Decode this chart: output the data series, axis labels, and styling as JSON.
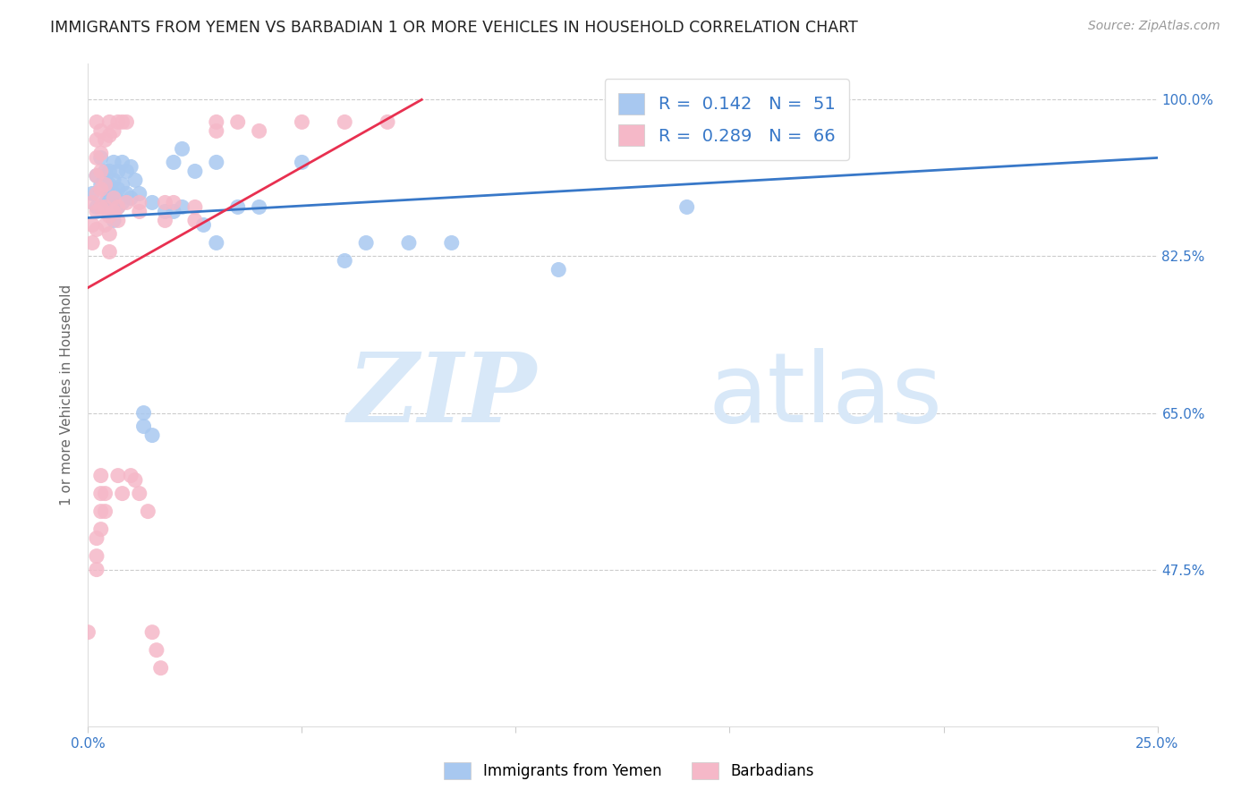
{
  "title": "IMMIGRANTS FROM YEMEN VS BARBADIAN 1 OR MORE VEHICLES IN HOUSEHOLD CORRELATION CHART",
  "source": "Source: ZipAtlas.com",
  "ylabel": "1 or more Vehicles in Household",
  "xlim": [
    0.0,
    0.25
  ],
  "ylim": [
    0.3,
    1.04
  ],
  "yticks": [
    0.475,
    0.65,
    0.825,
    1.0
  ],
  "ytick_labels": [
    "47.5%",
    "65.0%",
    "82.5%",
    "100.0%"
  ],
  "xtick_vals": [
    0.0,
    0.05,
    0.1,
    0.15,
    0.2,
    0.25
  ],
  "xtick_labels": [
    "0.0%",
    "",
    "",
    "",
    "",
    "25.0%"
  ],
  "legend_label1": "Immigrants from Yemen",
  "legend_label2": "Barbadians",
  "blue_color": "#a8c8f0",
  "pink_color": "#f5b8c8",
  "trend_blue": "#3878c8",
  "trend_pink": "#e83050",
  "watermark_zip": "ZIP",
  "watermark_atlas": "atlas",
  "watermark_color": "#d8e8f8",
  "blue_scatter": [
    [
      0.001,
      0.895
    ],
    [
      0.002,
      0.88
    ],
    [
      0.002,
      0.915
    ],
    [
      0.003,
      0.935
    ],
    [
      0.003,
      0.905
    ],
    [
      0.004,
      0.92
    ],
    [
      0.004,
      0.9
    ],
    [
      0.004,
      0.885
    ],
    [
      0.005,
      0.92
    ],
    [
      0.005,
      0.905
    ],
    [
      0.005,
      0.89
    ],
    [
      0.005,
      0.875
    ],
    [
      0.006,
      0.93
    ],
    [
      0.006,
      0.91
    ],
    [
      0.006,
      0.895
    ],
    [
      0.006,
      0.88
    ],
    [
      0.006,
      0.865
    ],
    [
      0.007,
      0.92
    ],
    [
      0.007,
      0.9
    ],
    [
      0.007,
      0.88
    ],
    [
      0.008,
      0.93
    ],
    [
      0.008,
      0.905
    ],
    [
      0.008,
      0.885
    ],
    [
      0.009,
      0.92
    ],
    [
      0.009,
      0.895
    ],
    [
      0.01,
      0.925
    ],
    [
      0.01,
      0.89
    ],
    [
      0.011,
      0.91
    ],
    [
      0.012,
      0.895
    ],
    [
      0.013,
      0.65
    ],
    [
      0.013,
      0.635
    ],
    [
      0.015,
      0.885
    ],
    [
      0.015,
      0.625
    ],
    [
      0.018,
      0.875
    ],
    [
      0.02,
      0.93
    ],
    [
      0.02,
      0.875
    ],
    [
      0.022,
      0.945
    ],
    [
      0.022,
      0.88
    ],
    [
      0.025,
      0.92
    ],
    [
      0.027,
      0.86
    ],
    [
      0.03,
      0.93
    ],
    [
      0.03,
      0.84
    ],
    [
      0.035,
      0.88
    ],
    [
      0.04,
      0.88
    ],
    [
      0.05,
      0.93
    ],
    [
      0.06,
      0.82
    ],
    [
      0.065,
      0.84
    ],
    [
      0.075,
      0.84
    ],
    [
      0.085,
      0.84
    ],
    [
      0.11,
      0.81
    ],
    [
      0.14,
      0.88
    ]
  ],
  "pink_scatter": [
    [
      0.0,
      0.405
    ],
    [
      0.001,
      0.885
    ],
    [
      0.001,
      0.86
    ],
    [
      0.001,
      0.84
    ],
    [
      0.002,
      0.975
    ],
    [
      0.002,
      0.955
    ],
    [
      0.002,
      0.935
    ],
    [
      0.002,
      0.915
    ],
    [
      0.002,
      0.895
    ],
    [
      0.002,
      0.875
    ],
    [
      0.002,
      0.855
    ],
    [
      0.002,
      0.51
    ],
    [
      0.002,
      0.49
    ],
    [
      0.002,
      0.475
    ],
    [
      0.003,
      0.965
    ],
    [
      0.003,
      0.94
    ],
    [
      0.003,
      0.92
    ],
    [
      0.003,
      0.9
    ],
    [
      0.003,
      0.88
    ],
    [
      0.003,
      0.58
    ],
    [
      0.003,
      0.56
    ],
    [
      0.003,
      0.54
    ],
    [
      0.003,
      0.52
    ],
    [
      0.004,
      0.955
    ],
    [
      0.004,
      0.905
    ],
    [
      0.004,
      0.88
    ],
    [
      0.004,
      0.86
    ],
    [
      0.004,
      0.56
    ],
    [
      0.004,
      0.54
    ],
    [
      0.005,
      0.975
    ],
    [
      0.005,
      0.96
    ],
    [
      0.005,
      0.87
    ],
    [
      0.005,
      0.85
    ],
    [
      0.005,
      0.83
    ],
    [
      0.006,
      0.965
    ],
    [
      0.006,
      0.89
    ],
    [
      0.006,
      0.875
    ],
    [
      0.007,
      0.975
    ],
    [
      0.007,
      0.88
    ],
    [
      0.007,
      0.865
    ],
    [
      0.007,
      0.58
    ],
    [
      0.008,
      0.975
    ],
    [
      0.008,
      0.56
    ],
    [
      0.009,
      0.975
    ],
    [
      0.009,
      0.885
    ],
    [
      0.01,
      0.58
    ],
    [
      0.011,
      0.575
    ],
    [
      0.012,
      0.885
    ],
    [
      0.012,
      0.875
    ],
    [
      0.012,
      0.56
    ],
    [
      0.014,
      0.54
    ],
    [
      0.015,
      0.405
    ],
    [
      0.016,
      0.385
    ],
    [
      0.017,
      0.365
    ],
    [
      0.018,
      0.885
    ],
    [
      0.018,
      0.865
    ],
    [
      0.02,
      0.885
    ],
    [
      0.025,
      0.88
    ],
    [
      0.025,
      0.865
    ],
    [
      0.03,
      0.975
    ],
    [
      0.03,
      0.965
    ],
    [
      0.035,
      0.975
    ],
    [
      0.04,
      0.965
    ],
    [
      0.05,
      0.975
    ],
    [
      0.06,
      0.975
    ],
    [
      0.07,
      0.975
    ]
  ],
  "blue_trend_x": [
    0.0,
    0.25
  ],
  "blue_trend_y": [
    0.868,
    0.935
  ],
  "pink_trend_x": [
    0.0,
    0.078
  ],
  "pink_trend_y": [
    0.79,
    1.0
  ]
}
